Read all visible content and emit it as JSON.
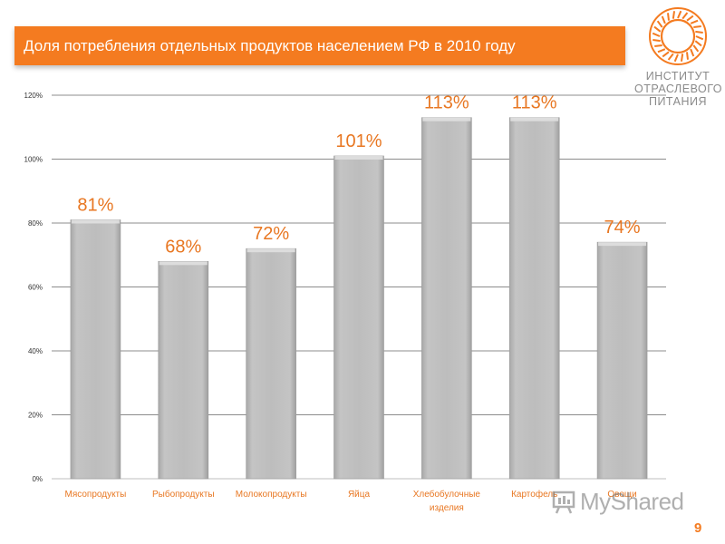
{
  "header": {
    "title": "Доля потребления отдельных продуктов населением РФ в 2010 году"
  },
  "logo": {
    "lines": [
      "ИНСТИТУТ",
      "ОТРАСЛЕВОГО",
      "ПИТАНИЯ"
    ],
    "color": "#f47b20"
  },
  "page_number": "9",
  "watermark": {
    "text": "MyShared"
  },
  "chart_data": {
    "type": "bar",
    "title": "Доля потребления отдельных продуктов населением РФ в 2010 году",
    "categories": [
      "Мясопродукты",
      "Рыбопродукты",
      "Молокопродукты",
      "Яйца",
      [
        "Хлебобулочные",
        "изделия"
      ],
      "Картофель",
      "Овощи"
    ],
    "values": [
      81,
      68,
      72,
      101,
      113,
      113,
      74
    ],
    "value_labels": [
      "81%",
      "68%",
      "72%",
      "101%",
      "113%",
      "113%",
      "74%"
    ],
    "yticks": [
      "0%",
      "20%",
      "40%",
      "60%",
      "80%",
      "100%",
      "120%"
    ],
    "ylim": [
      0,
      120
    ],
    "grid": true,
    "xlabel": "",
    "ylabel": "",
    "bar_color": "#bdbdbd",
    "label_color": "#e87722"
  }
}
